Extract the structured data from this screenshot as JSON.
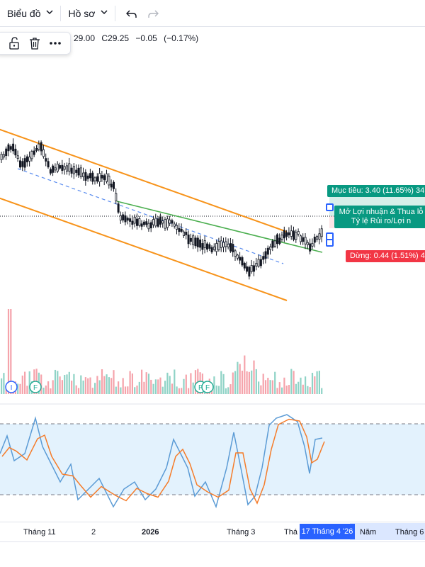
{
  "toolbar": {
    "chart_label": "Biểu đồ",
    "profile_label": "Hồ sơ",
    "icons": [
      "chevron-down-icon",
      "undo-icon",
      "redo-icon"
    ]
  },
  "floating_toolbar": {
    "icons": [
      "unlock-icon",
      "trash-icon",
      "more-icon"
    ]
  },
  "legend": {
    "open_partial": "29.00",
    "close": "C29.25",
    "change": "−0.05",
    "change_pct": "(−0.17%)"
  },
  "position_tool": {
    "target_text": "Mục tiêu: 3.40 (11.65%) 34",
    "stop_text": "Dừng: 0.44 (1.51%) 4",
    "position_line1": "Mở Lợi nhuận & Thua lỗ",
    "position_line2": "Tỷ lệ Rủi ro/Lợi n",
    "colors": {
      "profit": "#089981",
      "loss": "#f23645"
    }
  },
  "markers": [
    {
      "letter": "I",
      "color": "#2962ff"
    },
    {
      "letter": "F",
      "color": "#22ab94"
    },
    {
      "letter": "F",
      "color": "#22ab94"
    },
    {
      "letter": "F",
      "color": "#22ab94"
    }
  ],
  "time_axis": {
    "ticks": [
      "Tháng 11",
      "2",
      "2026",
      "Tháng 3",
      "Thá",
      "Năm",
      "Tháng 6"
    ],
    "cursor_label": "17 Tháng 4 '26"
  },
  "colors": {
    "up": "#ffffff",
    "down": "#131722",
    "channel": "#f7931a",
    "trendline": "#4caf50",
    "dashed": "#5b8def",
    "stoch_k": "#5b9bd5",
    "stoch_d": "#f57c2a",
    "stoch_band": "#e3f2fd"
  }
}
